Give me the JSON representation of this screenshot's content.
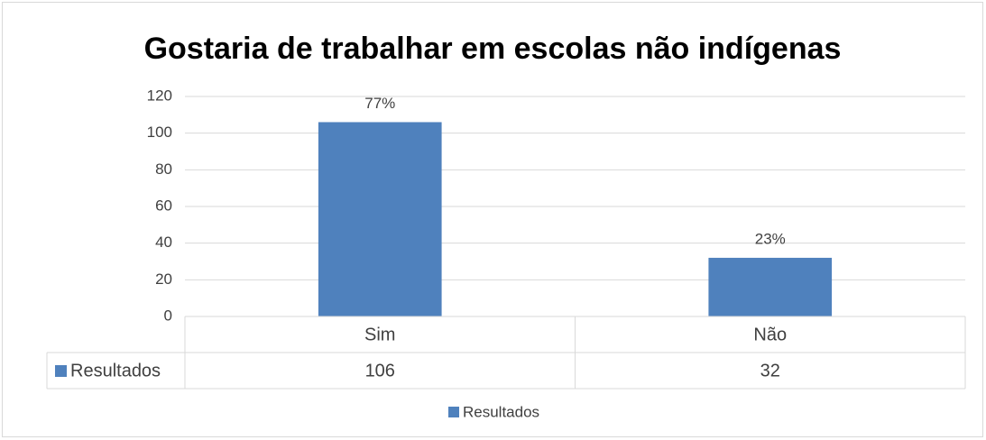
{
  "chart_data": {
    "type": "bar",
    "title": "Gostaria de trabalhar em escolas não indígenas",
    "categories": [
      "Sim",
      "Não"
    ],
    "series": [
      {
        "name": "Resultados",
        "color": "#4f81bd",
        "values": [
          106,
          32
        ],
        "value_labels": [
          "77%",
          "23%"
        ]
      }
    ],
    "ylim": [
      0,
      120
    ],
    "yticks": [
      0,
      20,
      40,
      60,
      80,
      100,
      120
    ],
    "grid": true,
    "data_table": true,
    "legend": "bottom"
  }
}
